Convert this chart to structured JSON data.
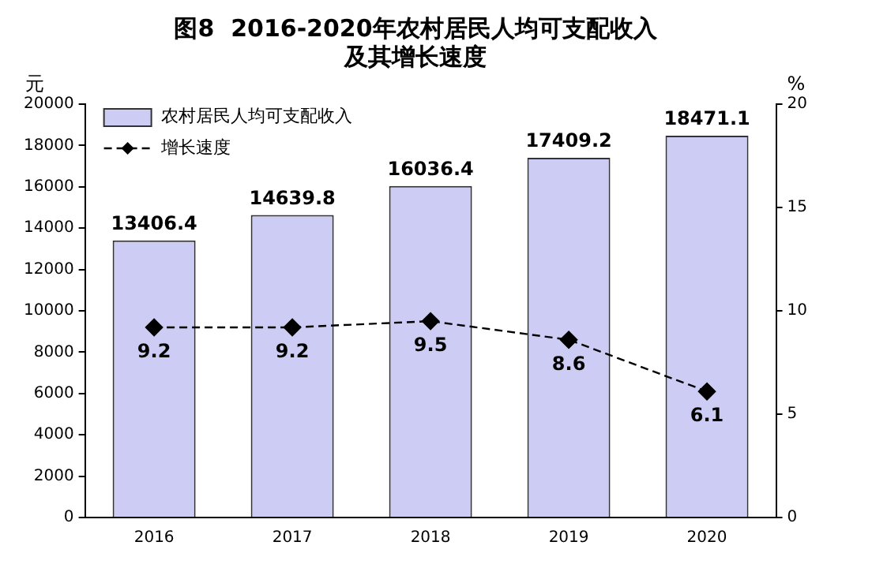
{
  "chart_data": {
    "type": "bar",
    "title": "图8  2016-2020年农村居民人均可支配收入",
    "subtitle": "及其增长速度",
    "ylabel": "元",
    "y2label": "%",
    "categories": [
      "2016",
      "2017",
      "2018",
      "2019",
      "2020"
    ],
    "series": [
      {
        "name": "农村居民人均可支配收入",
        "color": "#ccccf4",
        "values": [
          13406.4,
          14639.8,
          16036.4,
          17409.2,
          18471.1
        ]
      },
      {
        "name": "增长速度",
        "type": "line",
        "axis": "y2",
        "color": "#000000",
        "marker": "diamond",
        "line_style": "dashed",
        "values": [
          9.2,
          9.2,
          9.5,
          8.6,
          6.1
        ]
      }
    ],
    "ylim": [
      0,
      20000
    ],
    "yticks": [
      0,
      2000,
      4000,
      6000,
      8000,
      10000,
      12000,
      14000,
      16000,
      18000,
      20000
    ],
    "y2lim": [
      0,
      20
    ],
    "y2ticks": [
      0,
      5,
      10,
      15,
      20
    ],
    "grid": false,
    "legend": "top left",
    "data_labels": true
  }
}
